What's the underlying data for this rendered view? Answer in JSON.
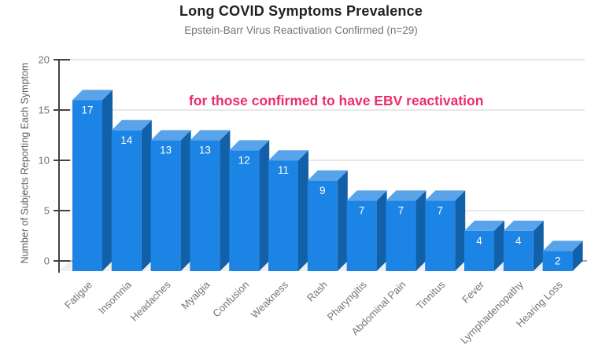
{
  "header": {
    "title": "Long COVID Symptoms Prevalence",
    "subtitle": "Epstein-Barr Virus Reactivation Confirmed (n=29)"
  },
  "annotation": {
    "text": "for those confirmed to have EBV reactivation",
    "color": "#ed2d67"
  },
  "chart_data": {
    "type": "bar",
    "style": "3d-column",
    "title": "Long COVID Symptoms Prevalence",
    "subtitle": "Epstein-Barr Virus Reactivation Confirmed (n=29)",
    "annotation": "for those confirmed to have EBV reactivation",
    "xlabel": "",
    "ylabel": "Number of Subjects Reporting Each Symptom",
    "ylim": [
      0,
      20
    ],
    "yticks": [
      0,
      5,
      10,
      15,
      20
    ],
    "grid": true,
    "legend": false,
    "categories": [
      "Fatigue",
      "Insomnia",
      "Headaches",
      "Myalgia",
      "Confusion",
      "Weakness",
      "Rash",
      "Pharyngitis",
      "Abdominal Pain",
      "Tinnitus",
      "Fever",
      "Lymphadenopathy",
      "Hearing Loss"
    ],
    "values": [
      17,
      14,
      13,
      13,
      12,
      11,
      9,
      7,
      7,
      7,
      4,
      4,
      2
    ],
    "colors": {
      "bar_front": "#1b84e4",
      "bar_top": "#58a3ea",
      "bar_side": "#1160a8",
      "value_label": "#ffffff",
      "gridline": "#dadada",
      "baseline": "#8a8a8a",
      "axis": "#424242",
      "tick_label": "#757575",
      "category_label": "#757575",
      "floor": "#efefef"
    }
  }
}
